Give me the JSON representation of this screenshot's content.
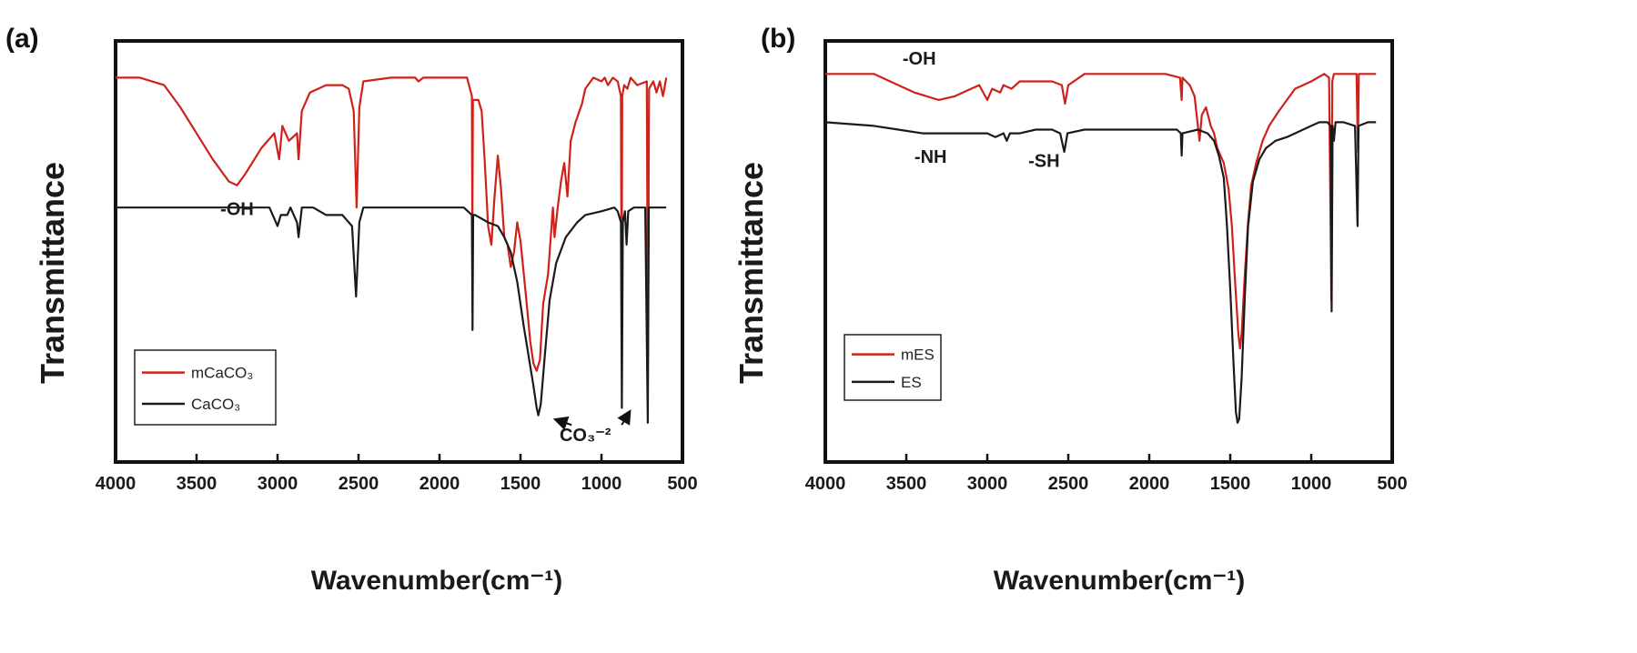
{
  "chart_data": [
    {
      "panel_label": "(a)",
      "type": "line",
      "title": "",
      "xlabel": "Wavenumber(cm⁻¹)",
      "ylabel": "Transmittance",
      "xlim": [
        4000,
        500
      ],
      "x_reversed": true,
      "ylim": [
        0,
        1
      ],
      "y_ticks_shown": false,
      "x_ticks": [
        4000,
        3500,
        3000,
        2500,
        2000,
        1500,
        1000,
        500
      ],
      "grid": false,
      "legend_position": "bottom-left",
      "series": [
        {
          "name": "mCaCO₃",
          "color": "#d0201a",
          "points": [
            [
              4000,
              0.95
            ],
            [
              3850,
              0.95
            ],
            [
              3700,
              0.93
            ],
            [
              3600,
              0.87
            ],
            [
              3500,
              0.8
            ],
            [
              3400,
              0.73
            ],
            [
              3300,
              0.67
            ],
            [
              3250,
              0.66
            ],
            [
              3200,
              0.69
            ],
            [
              3100,
              0.76
            ],
            [
              3020,
              0.8
            ],
            [
              2990,
              0.73
            ],
            [
              2970,
              0.82
            ],
            [
              2930,
              0.78
            ],
            [
              2880,
              0.8
            ],
            [
              2870,
              0.73
            ],
            [
              2850,
              0.86
            ],
            [
              2800,
              0.91
            ],
            [
              2700,
              0.93
            ],
            [
              2600,
              0.93
            ],
            [
              2560,
              0.92
            ],
            [
              2530,
              0.86
            ],
            [
              2512,
              0.6
            ],
            [
              2495,
              0.87
            ],
            [
              2470,
              0.94
            ],
            [
              2300,
              0.95
            ],
            [
              2150,
              0.95
            ],
            [
              2130,
              0.94
            ],
            [
              2100,
              0.95
            ],
            [
              1830,
              0.95
            ],
            [
              1800,
              0.9
            ],
            [
              1797,
              0.5
            ],
            [
              1794,
              0.89
            ],
            [
              1760,
              0.89
            ],
            [
              1740,
              0.86
            ],
            [
              1720,
              0.72
            ],
            [
              1700,
              0.55
            ],
            [
              1680,
              0.5
            ],
            [
              1660,
              0.63
            ],
            [
              1640,
              0.74
            ],
            [
              1620,
              0.65
            ],
            [
              1600,
              0.52
            ],
            [
              1580,
              0.5
            ],
            [
              1560,
              0.44
            ],
            [
              1540,
              0.48
            ],
            [
              1520,
              0.56
            ],
            [
              1500,
              0.51
            ],
            [
              1470,
              0.38
            ],
            [
              1440,
              0.24
            ],
            [
              1420,
              0.18
            ],
            [
              1400,
              0.16
            ],
            [
              1380,
              0.19
            ],
            [
              1360,
              0.34
            ],
            [
              1330,
              0.42
            ],
            [
              1300,
              0.6
            ],
            [
              1290,
              0.52
            ],
            [
              1270,
              0.6
            ],
            [
              1250,
              0.67
            ],
            [
              1230,
              0.72
            ],
            [
              1210,
              0.63
            ],
            [
              1190,
              0.78
            ],
            [
              1160,
              0.83
            ],
            [
              1120,
              0.88
            ],
            [
              1100,
              0.92
            ],
            [
              1050,
              0.95
            ],
            [
              1000,
              0.94
            ],
            [
              980,
              0.95
            ],
            [
              960,
              0.93
            ],
            [
              930,
              0.95
            ],
            [
              900,
              0.94
            ],
            [
              880,
              0.9
            ],
            [
              876,
              0.28
            ],
            [
              872,
              0.9
            ],
            [
              860,
              0.93
            ],
            [
              840,
              0.92
            ],
            [
              820,
              0.95
            ],
            [
              780,
              0.93
            ],
            [
              720,
              0.94
            ],
            [
              713,
              0.2
            ],
            [
              706,
              0.92
            ],
            [
              680,
              0.94
            ],
            [
              660,
              0.91
            ],
            [
              640,
              0.94
            ],
            [
              620,
              0.9
            ],
            [
              600,
              0.95
            ]
          ]
        },
        {
          "name": "CaCO₃",
          "color": "#1a1a1a",
          "points": [
            [
              4000,
              0.6
            ],
            [
              3200,
              0.6
            ],
            [
              3050,
              0.6
            ],
            [
              3000,
              0.55
            ],
            [
              2980,
              0.58
            ],
            [
              2940,
              0.58
            ],
            [
              2920,
              0.6
            ],
            [
              2880,
              0.56
            ],
            [
              2870,
              0.52
            ],
            [
              2850,
              0.6
            ],
            [
              2780,
              0.6
            ],
            [
              2700,
              0.58
            ],
            [
              2600,
              0.58
            ],
            [
              2540,
              0.55
            ],
            [
              2515,
              0.36
            ],
            [
              2495,
              0.56
            ],
            [
              2470,
              0.6
            ],
            [
              2000,
              0.6
            ],
            [
              1850,
              0.6
            ],
            [
              1800,
              0.58
            ],
            [
              1796,
              0.27
            ],
            [
              1792,
              0.58
            ],
            [
              1780,
              0.58
            ],
            [
              1700,
              0.56
            ],
            [
              1640,
              0.55
            ],
            [
              1600,
              0.52
            ],
            [
              1560,
              0.48
            ],
            [
              1520,
              0.4
            ],
            [
              1480,
              0.28
            ],
            [
              1450,
              0.2
            ],
            [
              1420,
              0.12
            ],
            [
              1400,
              0.06
            ],
            [
              1390,
              0.04
            ],
            [
              1375,
              0.07
            ],
            [
              1350,
              0.2
            ],
            [
              1320,
              0.35
            ],
            [
              1280,
              0.45
            ],
            [
              1220,
              0.52
            ],
            [
              1150,
              0.56
            ],
            [
              1100,
              0.58
            ],
            [
              1000,
              0.59
            ],
            [
              920,
              0.6
            ],
            [
              900,
              0.59
            ],
            [
              880,
              0.56
            ],
            [
              874,
              0.06
            ],
            [
              868,
              0.56
            ],
            [
              855,
              0.59
            ],
            [
              845,
              0.5
            ],
            [
              835,
              0.59
            ],
            [
              800,
              0.6
            ],
            [
              730,
              0.6
            ],
            [
              714,
              0.02
            ],
            [
              708,
              0.6
            ],
            [
              650,
              0.6
            ],
            [
              600,
              0.6
            ]
          ]
        }
      ],
      "annotations": [
        {
          "text": "-OH",
          "x": 3250,
          "y": 0.58
        },
        {
          "text": "CO₃⁻²",
          "x": 1100,
          "y": -0.03
        }
      ]
    },
    {
      "panel_label": "(b)",
      "type": "line",
      "title": "",
      "xlabel": "Wavenumber(cm⁻¹)",
      "ylabel": "Transmittance",
      "xlim": [
        4000,
        500
      ],
      "x_reversed": true,
      "ylim": [
        0,
        1
      ],
      "y_ticks_shown": false,
      "x_ticks": [
        4000,
        3500,
        3000,
        2500,
        2000,
        1500,
        1000,
        500
      ],
      "grid": false,
      "legend_position": "bottom-left",
      "series": [
        {
          "name": "mES",
          "color": "#d0201a",
          "points": [
            [
              4000,
              0.96
            ],
            [
              3700,
              0.96
            ],
            [
              3600,
              0.94
            ],
            [
              3450,
              0.91
            ],
            [
              3300,
              0.89
            ],
            [
              3200,
              0.9
            ],
            [
              3100,
              0.92
            ],
            [
              3050,
              0.93
            ],
            [
              3000,
              0.89
            ],
            [
              2970,
              0.92
            ],
            [
              2920,
              0.91
            ],
            [
              2900,
              0.93
            ],
            [
              2850,
              0.92
            ],
            [
              2800,
              0.94
            ],
            [
              2700,
              0.94
            ],
            [
              2600,
              0.94
            ],
            [
              2540,
              0.93
            ],
            [
              2520,
              0.88
            ],
            [
              2500,
              0.93
            ],
            [
              2400,
              0.96
            ],
            [
              1900,
              0.96
            ],
            [
              1810,
              0.95
            ],
            [
              1800,
              0.89
            ],
            [
              1795,
              0.95
            ],
            [
              1750,
              0.93
            ],
            [
              1720,
              0.9
            ],
            [
              1700,
              0.82
            ],
            [
              1690,
              0.78
            ],
            [
              1675,
              0.85
            ],
            [
              1650,
              0.87
            ],
            [
              1620,
              0.82
            ],
            [
              1600,
              0.8
            ],
            [
              1580,
              0.76
            ],
            [
              1560,
              0.74
            ],
            [
              1540,
              0.72
            ],
            [
              1510,
              0.65
            ],
            [
              1490,
              0.55
            ],
            [
              1470,
              0.4
            ],
            [
              1450,
              0.26
            ],
            [
              1440,
              0.22
            ],
            [
              1430,
              0.26
            ],
            [
              1410,
              0.42
            ],
            [
              1390,
              0.56
            ],
            [
              1370,
              0.66
            ],
            [
              1340,
              0.72
            ],
            [
              1300,
              0.78
            ],
            [
              1260,
              0.82
            ],
            [
              1200,
              0.86
            ],
            [
              1150,
              0.89
            ],
            [
              1100,
              0.92
            ],
            [
              1000,
              0.94
            ],
            [
              920,
              0.96
            ],
            [
              890,
              0.95
            ],
            [
              876,
              0.35
            ],
            [
              870,
              0.94
            ],
            [
              860,
              0.96
            ],
            [
              800,
              0.96
            ],
            [
              720,
              0.96
            ],
            [
              712,
              0.75
            ],
            [
              706,
              0.96
            ],
            [
              650,
              0.96
            ],
            [
              600,
              0.96
            ]
          ]
        },
        {
          "name": "ES",
          "color": "#1a1a1a",
          "points": [
            [
              4000,
              0.83
            ],
            [
              3700,
              0.82
            ],
            [
              3550,
              0.81
            ],
            [
              3400,
              0.8
            ],
            [
              3300,
              0.8
            ],
            [
              3200,
              0.8
            ],
            [
              3100,
              0.8
            ],
            [
              3000,
              0.8
            ],
            [
              2950,
              0.79
            ],
            [
              2900,
              0.8
            ],
            [
              2880,
              0.78
            ],
            [
              2860,
              0.8
            ],
            [
              2800,
              0.8
            ],
            [
              2700,
              0.81
            ],
            [
              2600,
              0.81
            ],
            [
              2550,
              0.8
            ],
            [
              2525,
              0.75
            ],
            [
              2505,
              0.8
            ],
            [
              2400,
              0.81
            ],
            [
              2000,
              0.81
            ],
            [
              1830,
              0.81
            ],
            [
              1805,
              0.8
            ],
            [
              1800,
              0.74
            ],
            [
              1795,
              0.8
            ],
            [
              1700,
              0.81
            ],
            [
              1640,
              0.8
            ],
            [
              1600,
              0.78
            ],
            [
              1570,
              0.74
            ],
            [
              1540,
              0.68
            ],
            [
              1520,
              0.55
            ],
            [
              1500,
              0.38
            ],
            [
              1480,
              0.18
            ],
            [
              1465,
              0.05
            ],
            [
              1455,
              0.02
            ],
            [
              1445,
              0.03
            ],
            [
              1430,
              0.14
            ],
            [
              1410,
              0.36
            ],
            [
              1390,
              0.55
            ],
            [
              1360,
              0.67
            ],
            [
              1320,
              0.73
            ],
            [
              1280,
              0.76
            ],
            [
              1220,
              0.78
            ],
            [
              1150,
              0.79
            ],
            [
              1100,
              0.8
            ],
            [
              1000,
              0.82
            ],
            [
              950,
              0.83
            ],
            [
              900,
              0.83
            ],
            [
              880,
              0.82
            ],
            [
              874,
              0.32
            ],
            [
              868,
              0.82
            ],
            [
              860,
              0.78
            ],
            [
              850,
              0.83
            ],
            [
              800,
              0.83
            ],
            [
              730,
              0.82
            ],
            [
              714,
              0.55
            ],
            [
              708,
              0.82
            ],
            [
              650,
              0.83
            ],
            [
              600,
              0.83
            ]
          ]
        }
      ],
      "annotations": [
        {
          "text": "-OH",
          "x": 3420,
          "y": 0.985
        },
        {
          "text": "-NH",
          "x": 3350,
          "y": 0.72
        },
        {
          "text": "-SH",
          "x": 2650,
          "y": 0.71
        }
      ]
    }
  ]
}
